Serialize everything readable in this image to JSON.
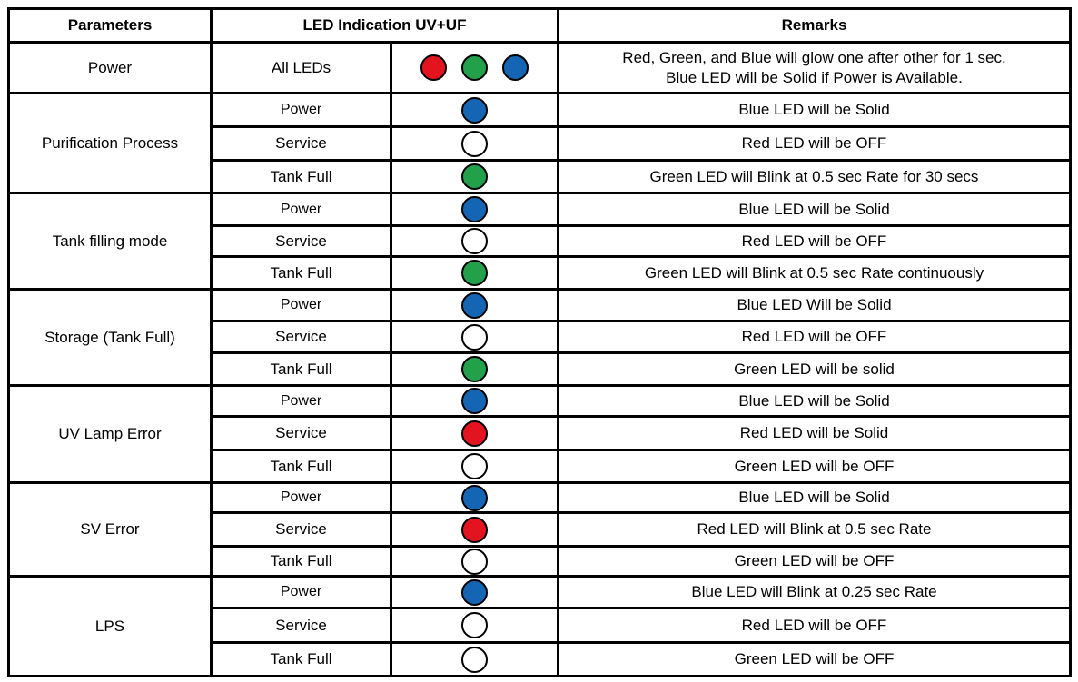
{
  "colors": {
    "red": "#e3141f",
    "green": "#22a04a",
    "blue": "#1565b5",
    "off": "#ffffff"
  },
  "header": {
    "parameters": "Parameters",
    "led_indication": "LED Indication UV+UF",
    "remarks": "Remarks"
  },
  "power_row": {
    "parameter": "Power",
    "indicator": "All LEDs",
    "leds": [
      "red",
      "green",
      "blue"
    ],
    "remarks": [
      "Red, Green, and Blue will glow one after other for 1 sec.",
      "Blue LED will be Solid if Power is Available."
    ]
  },
  "groups": [
    {
      "parameter": "Purification Process",
      "rows": [
        {
          "indicator": "Power",
          "led": "blue",
          "remark": "Blue LED will be Solid"
        },
        {
          "indicator": "Service",
          "led": "off",
          "remark": "Red LED will be OFF"
        },
        {
          "indicator": "Tank Full",
          "led": "green",
          "remark": "Green LED will Blink at 0.5 sec Rate for 30 secs"
        }
      ]
    },
    {
      "parameter": "Tank filling mode",
      "rows": [
        {
          "indicator": "Power",
          "led": "blue",
          "remark": "Blue LED will be Solid"
        },
        {
          "indicator": "Service",
          "led": "off",
          "remark": "Red LED will be OFF"
        },
        {
          "indicator": "Tank Full",
          "led": "green",
          "remark": "Green LED will Blink at 0.5 sec Rate continuously"
        }
      ]
    },
    {
      "parameter": "Storage (Tank Full)",
      "rows": [
        {
          "indicator": "Power",
          "led": "blue",
          "remark": "Blue LED Will be Solid"
        },
        {
          "indicator": "Service",
          "led": "off",
          "remark": "Red LED will be OFF"
        },
        {
          "indicator": "Tank Full",
          "led": "green",
          "remark": "Green LED will be solid"
        }
      ]
    },
    {
      "parameter": "UV Lamp Error",
      "rows": [
        {
          "indicator": "Power",
          "led": "blue",
          "remark": "Blue LED will be Solid"
        },
        {
          "indicator": "Service",
          "led": "red",
          "remark": "Red LED will be Solid"
        },
        {
          "indicator": "Tank Full",
          "led": "off",
          "remark": "Green LED will be OFF"
        }
      ]
    },
    {
      "parameter": "SV Error",
      "rows": [
        {
          "indicator": "Power",
          "led": "blue",
          "remark": "Blue LED will be Solid"
        },
        {
          "indicator": "Service",
          "led": "red",
          "remark": "Red LED will Blink at 0.5 sec Rate"
        },
        {
          "indicator": "Tank Full",
          "led": "off",
          "remark": "Green LED will be OFF"
        }
      ]
    },
    {
      "parameter": "LPS",
      "rows": [
        {
          "indicator": "Power",
          "led": "blue",
          "remark": "Blue LED will Blink at 0.25 sec Rate"
        },
        {
          "indicator": "Service",
          "led": "off",
          "remark": "Red LED will be OFF"
        },
        {
          "indicator": "Tank Full",
          "led": "off",
          "remark": "Green LED will be OFF"
        }
      ]
    }
  ]
}
